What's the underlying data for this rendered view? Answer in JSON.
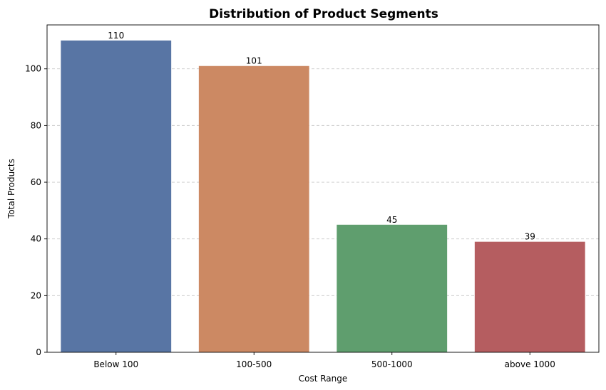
{
  "chart_data": {
    "type": "bar",
    "title": "Distribution of Product Segments",
    "xlabel": "Cost Range",
    "ylabel": "Total Products",
    "categories": [
      "Below 100",
      "100-500",
      "500-1000",
      "above 1000"
    ],
    "values": [
      110,
      101,
      45,
      39
    ],
    "value_labels": [
      "110",
      "101",
      "45",
      "39"
    ],
    "colors": [
      "#5875a4",
      "#cc8963",
      "#5f9e6e",
      "#b55d60"
    ],
    "ylim": [
      0,
      115.5
    ],
    "yticks": [
      0,
      20,
      40,
      60,
      80,
      100
    ],
    "ytick_labels": [
      "0",
      "20",
      "40",
      "60",
      "80",
      "100"
    ],
    "grid": "y-dashed",
    "legend": "none"
  }
}
